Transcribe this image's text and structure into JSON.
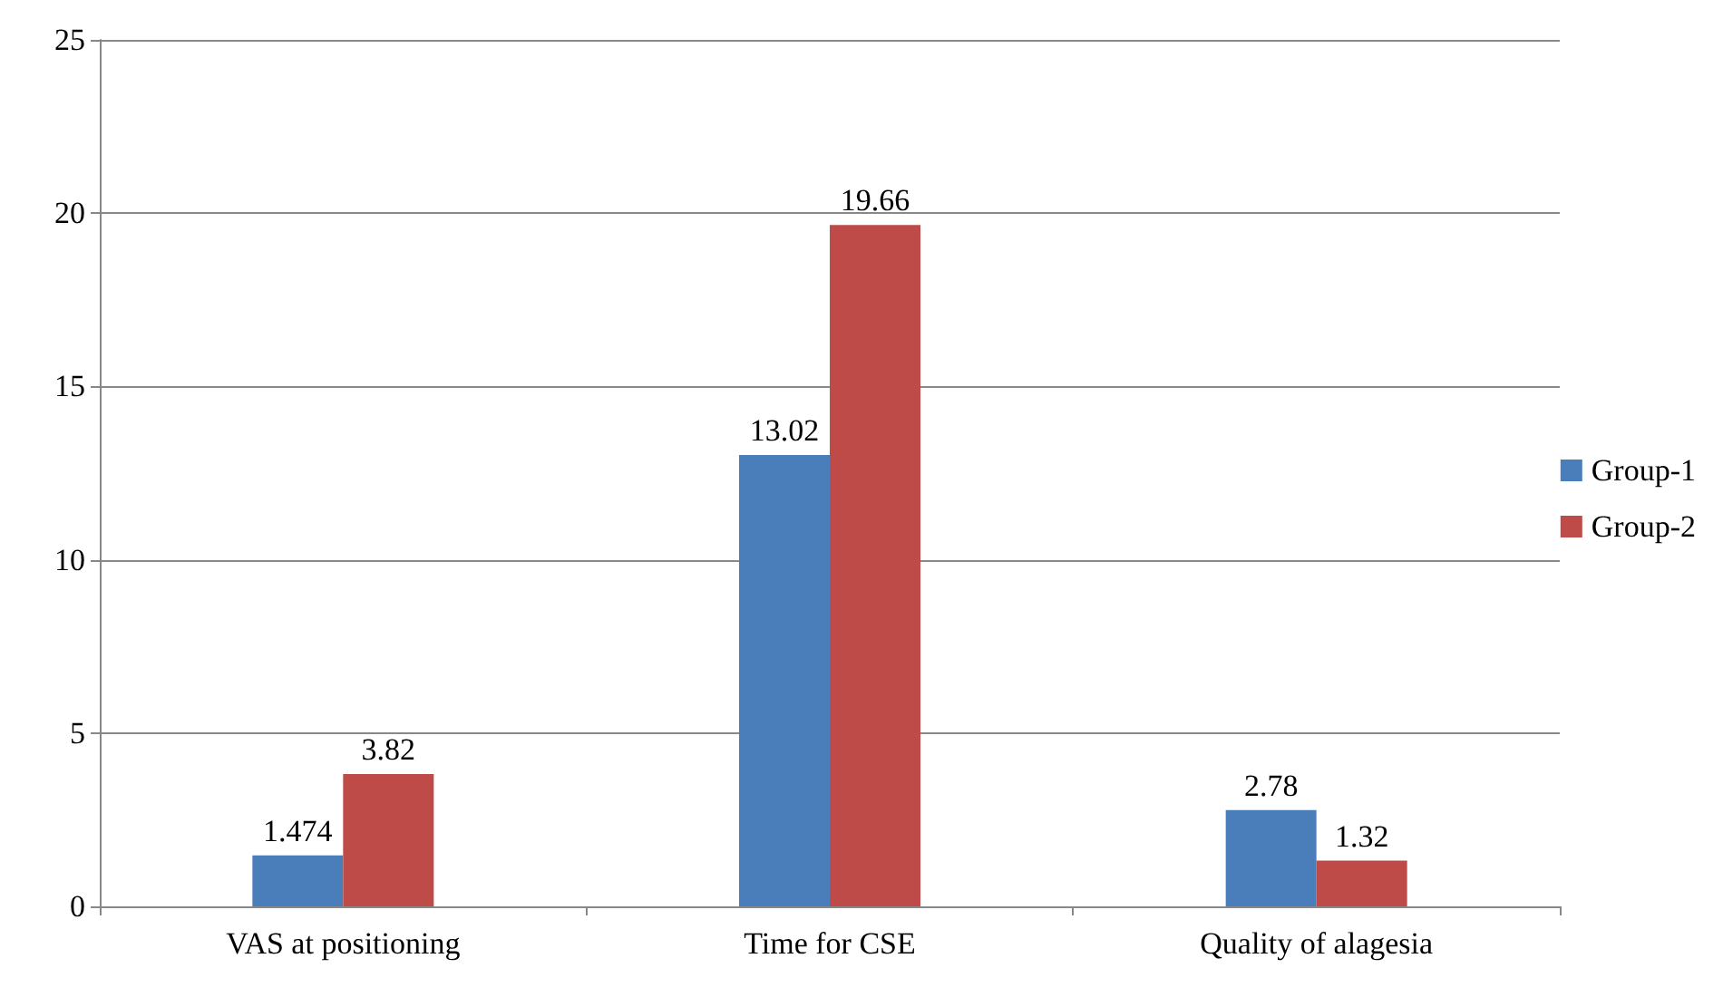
{
  "chart_data": {
    "type": "bar",
    "categories": [
      "VAS at positioning",
      "Time for CSE",
      "Quality of alagesia"
    ],
    "series": [
      {
        "name": "Group-1",
        "color": "#4a7ebb",
        "values": [
          1.474,
          13.02,
          2.78
        ]
      },
      {
        "name": "Group-2",
        "color": "#be4b48",
        "values": [
          3.82,
          19.66,
          1.32
        ]
      }
    ],
    "ylim": [
      0,
      25
    ],
    "yticks": [
      0,
      5,
      10,
      15,
      20,
      25
    ],
    "grid": "y",
    "legend": "right",
    "data_labels": true
  }
}
